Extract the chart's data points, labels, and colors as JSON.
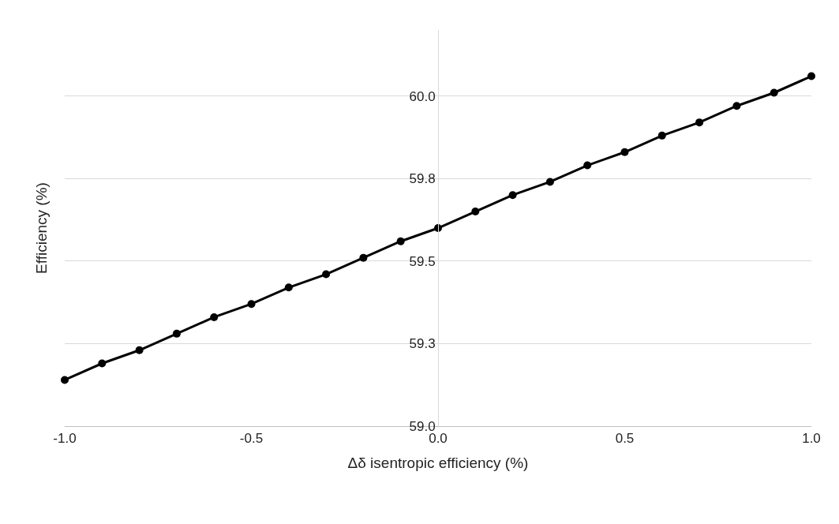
{
  "chart_data": {
    "type": "line",
    "xlabel": "Δδ isentropic efficiency (%)",
    "ylabel": "Efficiency (%)",
    "x": [
      -1.0,
      -0.9,
      -0.8,
      -0.7,
      -0.6,
      -0.5,
      -0.4,
      -0.3,
      -0.2,
      -0.1,
      0.0,
      0.1,
      0.2,
      0.3,
      0.4,
      0.5,
      0.6,
      0.7,
      0.8,
      0.9,
      1.0
    ],
    "series": [
      {
        "color": "#000000",
        "values": [
          59.14,
          59.19,
          59.23,
          59.28,
          59.33,
          59.37,
          59.42,
          59.46,
          59.51,
          59.56,
          59.6,
          59.65,
          59.7,
          59.74,
          59.79,
          59.83,
          59.88,
          59.92,
          59.97,
          60.01,
          60.06
        ]
      }
    ],
    "xlim": [
      -1.0,
      1.0
    ],
    "xticks": [
      {
        "value": -1.0,
        "label": "-1.0"
      },
      {
        "value": -0.5,
        "label": "-0.5"
      },
      {
        "value": 0.0,
        "label": "0.0"
      },
      {
        "value": 0.5,
        "label": "0.5"
      },
      {
        "value": 1.0,
        "label": "1.0"
      }
    ],
    "ylim": [
      59.0,
      60.2
    ],
    "yticks": [
      {
        "value": 59.0,
        "label": "59.0"
      },
      {
        "value": 59.25,
        "label": "59.3"
      },
      {
        "value": 59.5,
        "label": "59.5"
      },
      {
        "value": 59.75,
        "label": "59.8"
      },
      {
        "value": 60.0,
        "label": "60.0"
      }
    ],
    "grid": "y",
    "marker": "circle",
    "line_style": "solid"
  }
}
